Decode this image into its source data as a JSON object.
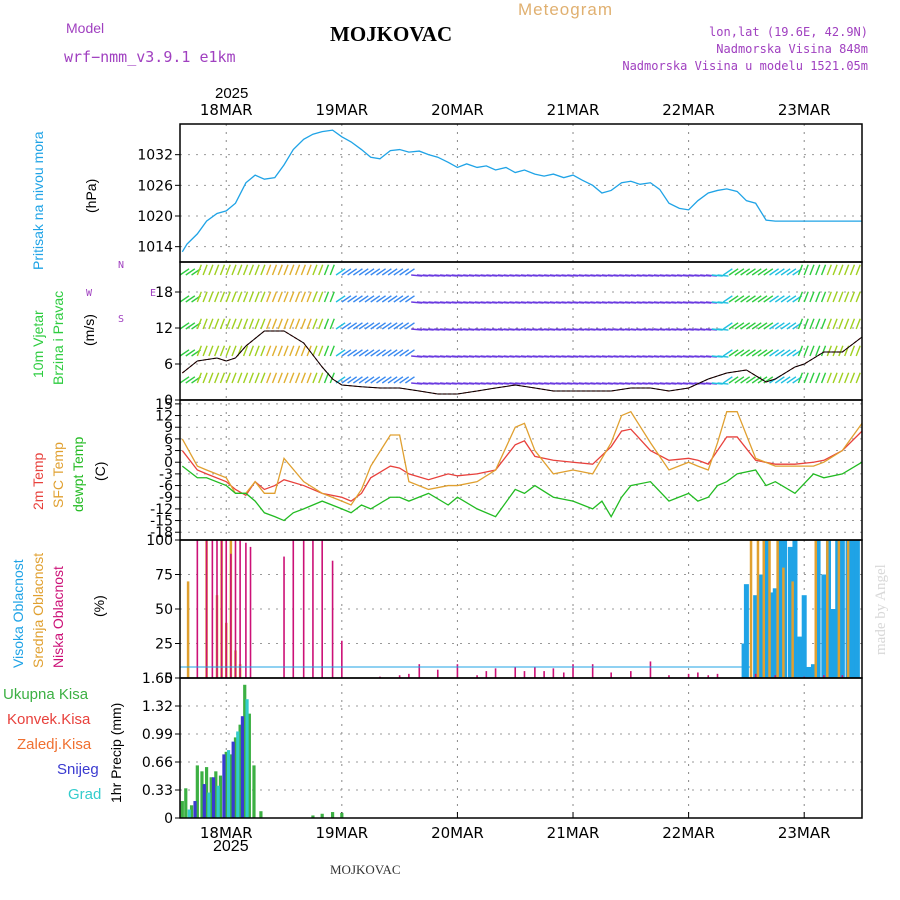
{
  "header": {
    "model_label": "Model",
    "model_name": "wrf−nmm_v3.9.1  e1km",
    "station": "MOJKOVAC",
    "product": "Meteogram",
    "lonlat": "lon,lat (19.6E, 42.9N)",
    "elevation": "Nadmorska Visina 848m",
    "model_elevation": "Nadmorska Visina u modelu 1521.05m",
    "year_top": "2025",
    "year_bottom": "2025",
    "footer_station": "MOJKOVAC",
    "watermark": "made by Angel"
  },
  "colors": {
    "pressure": "#1fa3e6",
    "wind_label": "#2ecc40",
    "temp2m": "#e8413c",
    "sfc_temp": "#e0a030",
    "dewpt": "#22bb22",
    "cloud_high": "#1fa3e6",
    "cloud_mid": "#e0a030",
    "cloud_low": "#cc1177",
    "precip_total": "#3cb043",
    "precip_conv": "#e8413c",
    "precip_frz": "#f07030",
    "precip_snow": "#3a3ad0",
    "precip_grad": "#33cccc",
    "header_purple": "#a040c0",
    "header_orange": "#e0b070"
  },
  "labels": {
    "pressure": [
      "Pritisak na nivou mora",
      "(hPa)"
    ],
    "wind": [
      "10m Vjetar",
      "Brzina i Pravac",
      "(m/s)"
    ],
    "wind_compass": [
      "N",
      "W",
      "E",
      "S"
    ],
    "temp": [
      "2m Temp",
      "SFC Temp",
      "dewpt Temp",
      "(C)"
    ],
    "cloud": [
      "Visoka Oblacnost",
      "Srednja Oblacnost",
      "Niska Oblacnost",
      "(%)"
    ],
    "precip_axis": "1hr Precip (mm)",
    "precip_legend": [
      "Ukupna Kisa",
      "Konvek.Kisa",
      "Zaledj.Kisa",
      "Snijeg",
      "Grad"
    ]
  },
  "chart_data": [
    {
      "type": "line",
      "name": "pressure",
      "x_days": [
        17.62,
        17.66,
        17.75,
        17.83,
        17.92,
        18.0,
        18.08,
        18.17,
        18.25,
        18.33,
        18.42,
        18.5,
        18.58,
        18.67,
        18.75,
        18.83,
        18.92,
        19.0,
        19.08,
        19.17,
        19.25,
        19.33,
        19.42,
        19.5,
        19.58,
        19.67,
        19.75,
        19.83,
        19.92,
        20.0,
        20.08,
        20.17,
        20.25,
        20.33,
        20.42,
        20.5,
        20.58,
        20.67,
        20.75,
        20.83,
        20.92,
        21.0,
        21.08,
        21.17,
        21.25,
        21.33,
        21.42,
        21.5,
        21.58,
        21.67,
        21.75,
        21.83,
        21.92,
        22.0,
        22.08,
        22.17,
        22.25,
        22.33,
        22.42,
        22.5,
        22.58,
        22.67,
        22.75,
        22.83,
        22.92,
        23.0,
        23.08,
        23.17,
        23.25,
        23.33,
        23.42,
        23.5
      ],
      "y": [
        1013,
        1014.5,
        1016.5,
        1019,
        1020.5,
        1021,
        1022.5,
        1026.5,
        1028,
        1027.2,
        1027.5,
        1030,
        1033,
        1035,
        1036,
        1036.5,
        1036.8,
        1035.5,
        1034.5,
        1033,
        1031.5,
        1031.2,
        1032.8,
        1033,
        1032.5,
        1032.7,
        1032,
        1031.5,
        1030.5,
        1029.5,
        1030.2,
        1029.5,
        1029.8,
        1029,
        1029.5,
        1028.5,
        1029,
        1028.2,
        1027.8,
        1028.2,
        1027.5,
        1028,
        1027,
        1026,
        1024.5,
        1025,
        1026.5,
        1026.8,
        1026.2,
        1026.5,
        1025.2,
        1022.5,
        1021.5,
        1021.2,
        1023,
        1024.5,
        1025,
        1025.3,
        1024.8,
        1023,
        1022.5,
        1019.2,
        1019,
        1019,
        1019,
        1019,
        1019,
        1019,
        1019,
        1019,
        1019,
        1019
      ],
      "ylim": [
        1011,
        1038
      ],
      "yticks": [
        1014,
        1020,
        1026,
        1032
      ]
    },
    {
      "type": "line",
      "name": "wind_speed",
      "x_days": [
        17.62,
        17.75,
        17.92,
        18.0,
        18.08,
        18.17,
        18.33,
        18.5,
        18.67,
        18.75,
        18.83,
        18.92,
        19.0,
        19.17,
        19.33,
        19.5,
        19.67,
        19.83,
        20.0,
        20.17,
        20.33,
        20.5,
        20.67,
        20.83,
        21.0,
        21.17,
        21.33,
        21.5,
        21.67,
        21.83,
        22.0,
        22.17,
        22.33,
        22.5,
        22.67,
        22.75,
        22.92,
        23.0,
        23.17,
        23.33,
        23.5
      ],
      "y": [
        4.5,
        6.5,
        7,
        6.5,
        7,
        9,
        11.5,
        11.5,
        9.5,
        7.5,
        5.5,
        3.5,
        2.5,
        2.2,
        2,
        2,
        1.5,
        1,
        1,
        1.5,
        2,
        2.5,
        2,
        1.5,
        1.5,
        1.5,
        1.5,
        2,
        2,
        1.5,
        2,
        3.5,
        4.5,
        5,
        3,
        3.5,
        5.5,
        6,
        8,
        8,
        10.5
      ],
      "ylim": [
        0,
        23
      ],
      "yticks": [
        0,
        6,
        12,
        18
      ]
    },
    {
      "type": "line",
      "name": "temperature",
      "yticks": [
        15,
        12,
        9,
        6,
        3,
        0,
        -3,
        -6,
        -9,
        -12,
        -15,
        -18
      ],
      "ylim": [
        -20,
        16
      ],
      "series": [
        {
          "name": "2m Temp",
          "x_days": [
            17.62,
            17.75,
            17.83,
            18.0,
            18.08,
            18.17,
            18.25,
            18.33,
            18.42,
            18.5,
            18.67,
            18.83,
            19.0,
            19.08,
            19.17,
            19.25,
            19.42,
            19.5,
            19.58,
            19.75,
            19.92,
            20.0,
            20.17,
            20.33,
            20.5,
            20.58,
            20.67,
            20.83,
            21.0,
            21.17,
            21.33,
            21.42,
            21.5,
            21.67,
            21.83,
            22.0,
            22.08,
            22.17,
            22.25,
            22.33,
            22.42,
            22.58,
            22.75,
            22.92,
            23.08,
            23.17,
            23.33,
            23.5
          ],
          "y": [
            3,
            -2,
            -3,
            -5,
            -7,
            -8.5,
            -5,
            -7,
            -6,
            -4.5,
            -6,
            -8,
            -9,
            -10,
            -8,
            -4,
            -1,
            -1.5,
            -3,
            -4.5,
            -3,
            -3.5,
            -3,
            -2,
            4.5,
            5.5,
            1.5,
            0.5,
            0,
            -0.5,
            4,
            8,
            8.5,
            3,
            0.5,
            1,
            0.5,
            -0.5,
            3,
            6.5,
            6.5,
            0.5,
            -0.5,
            -0.5,
            0,
            0.5,
            3,
            8
          ]
        },
        {
          "name": "SFC Temp",
          "x_days": [
            17.62,
            17.75,
            17.83,
            18.0,
            18.08,
            18.17,
            18.25,
            18.33,
            18.42,
            18.5,
            18.67,
            18.83,
            19.0,
            19.08,
            19.17,
            19.25,
            19.42,
            19.5,
            19.58,
            19.75,
            19.92,
            20.0,
            20.17,
            20.33,
            20.5,
            20.58,
            20.67,
            20.83,
            21.0,
            21.17,
            21.33,
            21.42,
            21.5,
            21.67,
            21.83,
            22.0,
            22.08,
            22.17,
            22.25,
            22.33,
            22.42,
            22.58,
            22.75,
            22.92,
            23.08,
            23.17,
            23.33,
            23.5
          ],
          "y": [
            6,
            -1,
            -2,
            -4,
            -8,
            -8,
            -5,
            -8,
            -8,
            1,
            -5,
            -8,
            -10,
            -11,
            -7,
            -1,
            7,
            7,
            -5,
            -7,
            -6,
            -6,
            -5,
            -2,
            9,
            10,
            3,
            -3,
            -2,
            -3,
            5,
            12,
            13,
            5,
            -2,
            0,
            -1,
            -2,
            5,
            13,
            13,
            1,
            -1,
            -1,
            -1,
            0,
            3,
            10
          ]
        },
        {
          "name": "dewpt Temp",
          "x_days": [
            17.62,
            17.75,
            17.83,
            18.0,
            18.08,
            18.17,
            18.25,
            18.33,
            18.42,
            18.5,
            18.58,
            18.67,
            18.83,
            19.0,
            19.08,
            19.17,
            19.25,
            19.42,
            19.5,
            19.58,
            19.75,
            19.92,
            20.0,
            20.17,
            20.33,
            20.5,
            20.58,
            20.67,
            20.83,
            21.0,
            21.17,
            21.25,
            21.33,
            21.42,
            21.5,
            21.67,
            21.83,
            22.0,
            22.08,
            22.17,
            22.25,
            22.33,
            22.42,
            22.58,
            22.67,
            22.75,
            22.92,
            23.08,
            23.17,
            23.33,
            23.5
          ],
          "y": [
            -1,
            -4,
            -4,
            -6,
            -8,
            -8,
            -10,
            -13,
            -14,
            -15,
            -13,
            -12,
            -10,
            -12,
            -13,
            -11,
            -12,
            -9,
            -9,
            -10,
            -8,
            -11,
            -9,
            -12,
            -14,
            -7,
            -8,
            -6,
            -9,
            -10,
            -12,
            -10,
            -14,
            -9,
            -6,
            -5,
            -10,
            -8,
            -10,
            -9,
            -6,
            -5,
            -3,
            -2,
            -6,
            -5,
            -8,
            -3,
            -4,
            -3,
            0
          ]
        }
      ]
    },
    {
      "type": "bar",
      "name": "cloud_cover",
      "ylim": [
        0,
        100
      ],
      "yticks": [
        0,
        25,
        50,
        75,
        100
      ],
      "series": [
        {
          "name": "Visoka Oblacnost",
          "x_days": [
            22.48,
            22.5,
            22.58,
            22.62,
            22.67,
            22.71,
            22.75,
            22.79,
            22.83,
            22.88,
            22.92,
            22.96,
            23.0,
            23.04,
            23.08,
            23.12,
            23.17,
            23.21,
            23.25,
            23.29,
            23.33,
            23.38,
            23.42,
            23.46
          ],
          "values": [
            25,
            68,
            60,
            75,
            100,
            62,
            65,
            100,
            100,
            95,
            100,
            30,
            60,
            8,
            10,
            100,
            75,
            100,
            50,
            100,
            100,
            100,
            100,
            100
          ]
        },
        {
          "name": "Srednja Oblacnost",
          "x_days": [
            17.67,
            17.83,
            17.92,
            17.96,
            18.0,
            18.04,
            18.08,
            18.12,
            22.54,
            22.6,
            22.65,
            22.7,
            22.77,
            22.82,
            22.9,
            23.1,
            23.2,
            23.3,
            23.38
          ],
          "values": [
            70,
            100,
            60,
            100,
            40,
            100,
            20,
            10,
            100,
            100,
            100,
            100,
            100,
            80,
            70,
            100,
            100,
            100,
            100
          ]
        },
        {
          "name": "Niska Oblacnost",
          "x_days": [
            17.75,
            17.83,
            17.88,
            17.92,
            17.96,
            18.0,
            18.04,
            18.08,
            18.12,
            18.17,
            18.21,
            18.5,
            18.58,
            18.67,
            18.75,
            18.83,
            18.92,
            19.0,
            19.33,
            19.5,
            19.58,
            19.67,
            19.83,
            20.0,
            20.17,
            20.25,
            20.33,
            20.5,
            20.58,
            20.67,
            20.75,
            20.83,
            20.92,
            21.0,
            21.17,
            21.33,
            21.5,
            21.67,
            21.83,
            22.0,
            22.08,
            22.17,
            22.25,
            22.58,
            22.75,
            23.0,
            23.17,
            23.33
          ],
          "values": [
            100,
            100,
            100,
            100,
            100,
            100,
            90,
            100,
            100,
            98,
            95,
            88,
            100,
            100,
            100,
            100,
            85,
            27,
            1,
            2,
            3,
            10,
            6,
            10,
            2,
            5,
            7,
            8,
            5,
            8,
            5,
            7,
            4,
            10,
            10,
            4,
            5,
            12,
            2,
            3,
            4,
            2,
            3,
            3,
            2,
            1,
            2,
            2
          ]
        }
      ]
    },
    {
      "type": "bar",
      "name": "precipitation",
      "ylim": [
        0,
        1.65
      ],
      "yticks": [
        0,
        0.33,
        0.66,
        0.99,
        1.32,
        1.65
      ],
      "series": [
        {
          "name": "Ukupna Kisa",
          "x_days": [
            17.62,
            17.65,
            17.7,
            17.75,
            17.79,
            17.83,
            17.87,
            17.91,
            17.95,
            18.0,
            18.04,
            18.08,
            18.12,
            18.16,
            18.2,
            18.24,
            18.3,
            18.75,
            18.83,
            18.92,
            19.0
          ],
          "values": [
            0.2,
            0.35,
            0.15,
            0.62,
            0.55,
            0.6,
            0.48,
            0.55,
            0.5,
            0.78,
            0.75,
            0.95,
            1.1,
            1.57,
            1.23,
            0.62,
            0.08,
            0.03,
            0.05,
            0.07,
            0.06
          ]
        },
        {
          "name": "Snijeg",
          "x_days": [
            17.73,
            17.81,
            17.89,
            17.98,
            18.06,
            18.14
          ],
          "values": [
            0.2,
            0.4,
            0.48,
            0.75,
            0.9,
            1.2
          ]
        },
        {
          "name": "Grad",
          "x_days": [
            17.68,
            17.85,
            17.93,
            18.02,
            18.1,
            18.18
          ],
          "values": [
            0.1,
            0.3,
            0.38,
            0.8,
            1.02,
            1.4
          ]
        }
      ]
    }
  ],
  "axis_days": [
    {
      "label": "18MAR",
      "day": 18
    },
    {
      "label": "19MAR",
      "day": 19
    },
    {
      "label": "20MAR",
      "day": 20
    },
    {
      "label": "21MAR",
      "day": 21
    },
    {
      "label": "22MAR",
      "day": 22
    },
    {
      "label": "23MAR",
      "day": 23
    }
  ],
  "x_range": [
    17.6,
    23.5
  ]
}
